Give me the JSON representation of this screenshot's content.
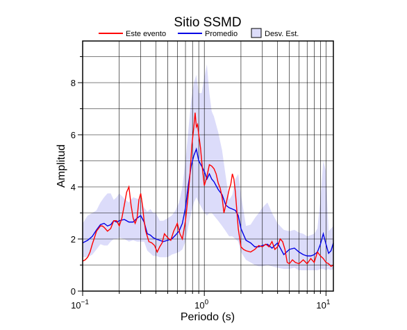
{
  "chart_data": {
    "type": "line",
    "title": "Sitio SSMD",
    "xlabel": "Periodo (s)",
    "ylabel": "Amplitud",
    "xscale": "log",
    "xlim": [
      0.1,
      11.5
    ],
    "ylim": [
      0,
      9.6
    ],
    "yticks": [
      0,
      2,
      4,
      6,
      8
    ],
    "grid": true,
    "legend_position": "top",
    "legend": {
      "event_label": "Este evento",
      "mean_label": "Promedio",
      "std_label": "Desv. Est."
    },
    "xtick_labels": [
      {
        "base": "10",
        "exp": "−1"
      },
      {
        "base": "10",
        "exp": "0"
      },
      {
        "base": "10",
        "exp": "1"
      }
    ],
    "colors": {
      "event": "#ff0000",
      "mean": "#0000e6",
      "std_fill": "#dcdcfa",
      "std_border": "#000000"
    },
    "series": [
      {
        "name": "Este evento",
        "x": [
          0.1,
          0.105,
          0.11,
          0.115,
          0.12,
          0.125,
          0.13,
          0.135,
          0.14,
          0.145,
          0.15,
          0.16,
          0.17,
          0.18,
          0.19,
          0.2,
          0.21,
          0.22,
          0.23,
          0.24,
          0.25,
          0.26,
          0.27,
          0.28,
          0.29,
          0.3,
          0.31,
          0.32,
          0.33,
          0.35,
          0.37,
          0.39,
          0.41,
          0.43,
          0.45,
          0.47,
          0.5,
          0.53,
          0.56,
          0.6,
          0.63,
          0.66,
          0.7,
          0.73,
          0.76,
          0.79,
          0.82,
          0.84,
          0.86,
          0.88,
          0.9,
          0.93,
          0.96,
          1.0,
          1.05,
          1.1,
          1.15,
          1.2,
          1.25,
          1.3,
          1.35,
          1.4,
          1.45,
          1.5,
          1.55,
          1.6,
          1.65,
          1.7,
          1.75,
          1.8,
          1.9,
          2.0,
          2.1,
          2.2,
          2.4,
          2.6,
          2.8,
          3.0,
          3.2,
          3.4,
          3.6,
          3.8,
          4.0,
          4.2,
          4.4,
          4.6,
          4.8,
          5.0,
          5.3,
          5.6,
          6.0,
          6.5,
          7.0,
          7.5,
          8.0,
          8.5,
          9.0,
          9.5,
          10.0,
          10.5,
          11.0,
          11.5
        ],
        "y": [
          1.15,
          1.2,
          1.3,
          1.5,
          1.8,
          2.05,
          2.3,
          2.4,
          2.5,
          2.5,
          2.45,
          2.3,
          2.4,
          2.7,
          2.7,
          2.5,
          2.8,
          3.3,
          3.8,
          4.0,
          3.3,
          2.8,
          2.6,
          2.8,
          3.5,
          3.75,
          3.3,
          2.7,
          2.3,
          1.9,
          1.85,
          1.75,
          1.5,
          1.7,
          1.85,
          2.2,
          2.05,
          1.95,
          2.3,
          2.6,
          2.2,
          2.0,
          2.7,
          3.5,
          4.4,
          5.6,
          6.3,
          6.85,
          6.3,
          6.4,
          6.0,
          5.5,
          4.8,
          4.05,
          4.4,
          4.85,
          4.8,
          4.7,
          4.5,
          4.15,
          3.95,
          3.6,
          3.0,
          3.3,
          3.6,
          3.9,
          4.1,
          4.5,
          4.3,
          3.8,
          2.4,
          1.7,
          1.6,
          1.55,
          1.5,
          1.6,
          1.75,
          1.7,
          1.8,
          1.7,
          1.9,
          1.6,
          1.7,
          2.0,
          1.9,
          1.6,
          1.1,
          1.05,
          1.2,
          1.1,
          1.05,
          1.2,
          1.05,
          1.25,
          1.1,
          1.5,
          1.35,
          1.25,
          1.1,
          1.05,
          0.95,
          1.0
        ]
      },
      {
        "name": "Promedio",
        "x": [
          0.1,
          0.11,
          0.12,
          0.13,
          0.14,
          0.15,
          0.16,
          0.17,
          0.18,
          0.19,
          0.2,
          0.22,
          0.24,
          0.26,
          0.28,
          0.3,
          0.32,
          0.34,
          0.36,
          0.38,
          0.4,
          0.43,
          0.46,
          0.5,
          0.54,
          0.58,
          0.62,
          0.66,
          0.7,
          0.74,
          0.78,
          0.82,
          0.86,
          0.9,
          0.95,
          1.0,
          1.05,
          1.1,
          1.15,
          1.2,
          1.3,
          1.4,
          1.5,
          1.6,
          1.7,
          1.8,
          1.9,
          2.0,
          2.2,
          2.4,
          2.6,
          2.8,
          3.0,
          3.3,
          3.6,
          4.0,
          4.5,
          5.0,
          5.5,
          6.0,
          6.5,
          7.0,
          7.5,
          8.0,
          8.5,
          9.0,
          9.5,
          10.0,
          10.5,
          11.0,
          11.5
        ],
        "y": [
          1.85,
          1.95,
          2.1,
          2.35,
          2.55,
          2.6,
          2.5,
          2.55,
          2.7,
          2.65,
          2.7,
          2.75,
          2.65,
          2.65,
          2.8,
          2.9,
          2.65,
          2.2,
          2.15,
          2.05,
          2.0,
          1.95,
          1.9,
          1.95,
          2.0,
          2.15,
          2.3,
          2.6,
          3.2,
          4.1,
          4.8,
          5.2,
          5.45,
          5.0,
          4.8,
          4.6,
          4.3,
          4.5,
          4.3,
          4.2,
          3.9,
          3.7,
          3.3,
          3.2,
          3.15,
          3.1,
          2.9,
          2.4,
          1.95,
          1.85,
          1.7,
          1.7,
          1.75,
          1.8,
          1.65,
          1.85,
          1.4,
          1.6,
          1.65,
          1.5,
          1.4,
          1.35,
          1.35,
          1.4,
          1.5,
          1.8,
          2.2,
          1.8,
          1.45,
          1.55,
          1.85
        ]
      },
      {
        "name": "Desv. Est.",
        "x": [
          0.1,
          0.11,
          0.12,
          0.13,
          0.14,
          0.15,
          0.16,
          0.17,
          0.18,
          0.19,
          0.2,
          0.22,
          0.24,
          0.26,
          0.28,
          0.3,
          0.32,
          0.34,
          0.36,
          0.38,
          0.4,
          0.43,
          0.46,
          0.5,
          0.54,
          0.58,
          0.62,
          0.66,
          0.7,
          0.74,
          0.78,
          0.82,
          0.86,
          0.9,
          0.95,
          1.0,
          1.05,
          1.1,
          1.15,
          1.2,
          1.3,
          1.4,
          1.5,
          1.6,
          1.7,
          1.8,
          1.9,
          2.0,
          2.2,
          2.4,
          2.6,
          2.8,
          3.0,
          3.3,
          3.6,
          4.0,
          4.5,
          5.0,
          5.5,
          6.0,
          6.5,
          7.0,
          7.5,
          8.0,
          8.5,
          9.0,
          9.5,
          10.0,
          10.5,
          11.0,
          11.5
        ],
        "upper": [
          2.6,
          2.9,
          3.0,
          3.1,
          3.4,
          3.6,
          3.75,
          3.75,
          3.5,
          3.6,
          3.75,
          3.55,
          3.4,
          3.6,
          3.55,
          3.5,
          3.2,
          3.05,
          3.15,
          3.0,
          3.0,
          2.7,
          2.7,
          2.8,
          2.9,
          3.1,
          3.4,
          4.0,
          5.0,
          6.2,
          7.3,
          8.0,
          8.3,
          7.6,
          7.6,
          8.2,
          8.7,
          7.6,
          6.9,
          6.7,
          6.1,
          5.4,
          4.4,
          3.5,
          3.7,
          4.3,
          4.5,
          3.7,
          2.5,
          2.55,
          2.8,
          3.0,
          3.2,
          3.4,
          3.0,
          2.6,
          2.35,
          2.3,
          2.35,
          2.25,
          2.2,
          2.1,
          2.15,
          2.2,
          2.4,
          3.5,
          5.0,
          4.6,
          2.3,
          2.4,
          2.5
        ],
        "lower": [
          1.3,
          1.3,
          1.4,
          1.6,
          1.8,
          1.75,
          1.75,
          1.9,
          2.0,
          2.0,
          2.05,
          2.0,
          1.9,
          1.95,
          1.9,
          1.9,
          1.9,
          1.55,
          1.45,
          1.35,
          1.35,
          1.3,
          1.3,
          1.3,
          1.4,
          1.45,
          1.5,
          1.6,
          1.9,
          2.5,
          3.0,
          3.4,
          3.6,
          3.4,
          3.2,
          3.0,
          2.9,
          3.0,
          3.0,
          2.9,
          2.7,
          2.5,
          2.3,
          2.1,
          2.1,
          2.0,
          1.9,
          1.5,
          1.2,
          1.1,
          1.0,
          0.95,
          0.95,
          1.0,
          0.95,
          0.9,
          0.85,
          0.85,
          0.9,
          0.8,
          0.8,
          0.8,
          0.8,
          0.8,
          0.8,
          0.85,
          0.85,
          0.8,
          0.85,
          0.8,
          0.85
        ]
      }
    ]
  }
}
